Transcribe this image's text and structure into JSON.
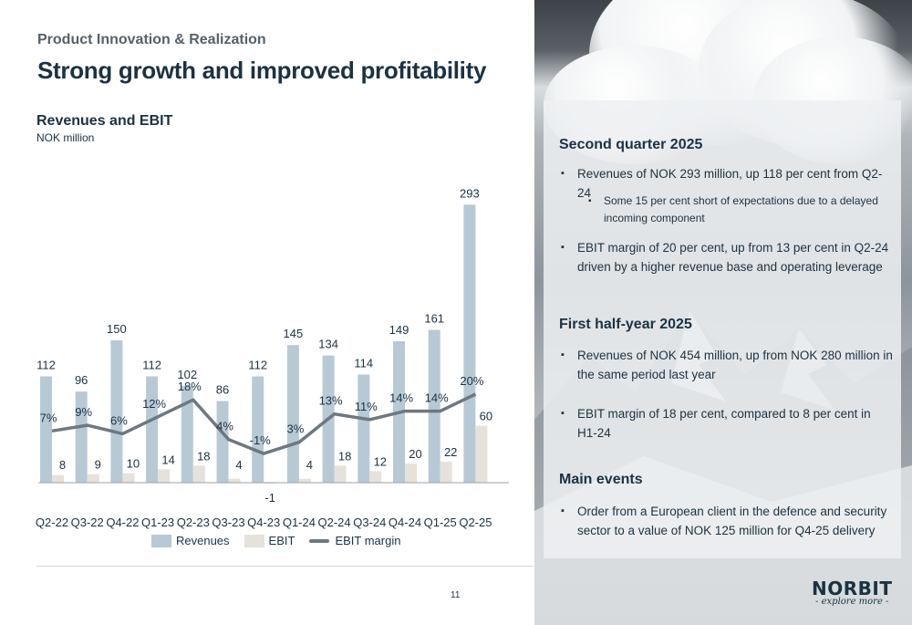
{
  "header": {
    "subtitle": "Product Innovation & Realization",
    "title": "Strong growth and improved profitability"
  },
  "chart_header": {
    "title": "Revenues and EBIT",
    "unit": "NOK million"
  },
  "chart_data": {
    "type": "bar",
    "title": "Revenues and EBIT",
    "subtitle": "NOK million",
    "categories": [
      "Q2-22",
      "Q3-22",
      "Q4-22",
      "Q1-23",
      "Q2-23",
      "Q3-23",
      "Q4-23",
      "Q1-24",
      "Q2-24",
      "Q3-24",
      "Q4-24",
      "Q1-25",
      "Q2-25"
    ],
    "series": [
      {
        "name": "Revenues",
        "type": "bar",
        "color": "#b8c9d6",
        "values": [
          112,
          96,
          150,
          112,
          102,
          86,
          112,
          145,
          134,
          114,
          149,
          161,
          293
        ]
      },
      {
        "name": "EBIT",
        "type": "bar",
        "color": "#e6e1da",
        "values": [
          8,
          9,
          10,
          14,
          18,
          4,
          -1,
          4,
          18,
          12,
          20,
          22,
          60
        ]
      },
      {
        "name": "EBIT margin",
        "type": "line",
        "color": "#6d7880",
        "values": [
          7,
          9,
          6,
          12,
          18,
          4,
          -1,
          3,
          13,
          11,
          14,
          14,
          20
        ],
        "labels": [
          "7%",
          "9%",
          "6%",
          "12%",
          "18%",
          "4%",
          "-1%",
          "3%",
          "13%",
          "11%",
          "14%",
          "14%",
          "20%"
        ]
      }
    ],
    "legend_position": "bottom",
    "grid": false
  },
  "legend": {
    "revenues": "Revenues",
    "ebit": "EBIT",
    "margin": "EBIT margin"
  },
  "panel": {
    "sections": [
      {
        "heading": "Second quarter 2025",
        "bullets": [
          "Revenues of NOK 293 million, up 118 per cent from Q2-24",
          "EBIT margin of 20 per cent, up from 13 per cent in Q2-24 driven by a higher revenue base and operating leverage"
        ],
        "sub_bullet": "Some 15 per cent short of expectations due to a delayed incoming component"
      },
      {
        "heading": "First half-year 2025",
        "bullets": [
          "Revenues of NOK 454 million, up from NOK 280 million in the same period last year",
          "EBIT margin of 18 per cent, compared to 8 per cent in H1-24"
        ]
      },
      {
        "heading": "Main events",
        "bullets": [
          "Order from a European client in the defence and security sector to a value of NOK 125 million for Q4-25 delivery"
        ]
      }
    ]
  },
  "footer": {
    "page_number": "11",
    "logo_word": "NORBIT",
    "logo_tagline": "- explore more -"
  }
}
